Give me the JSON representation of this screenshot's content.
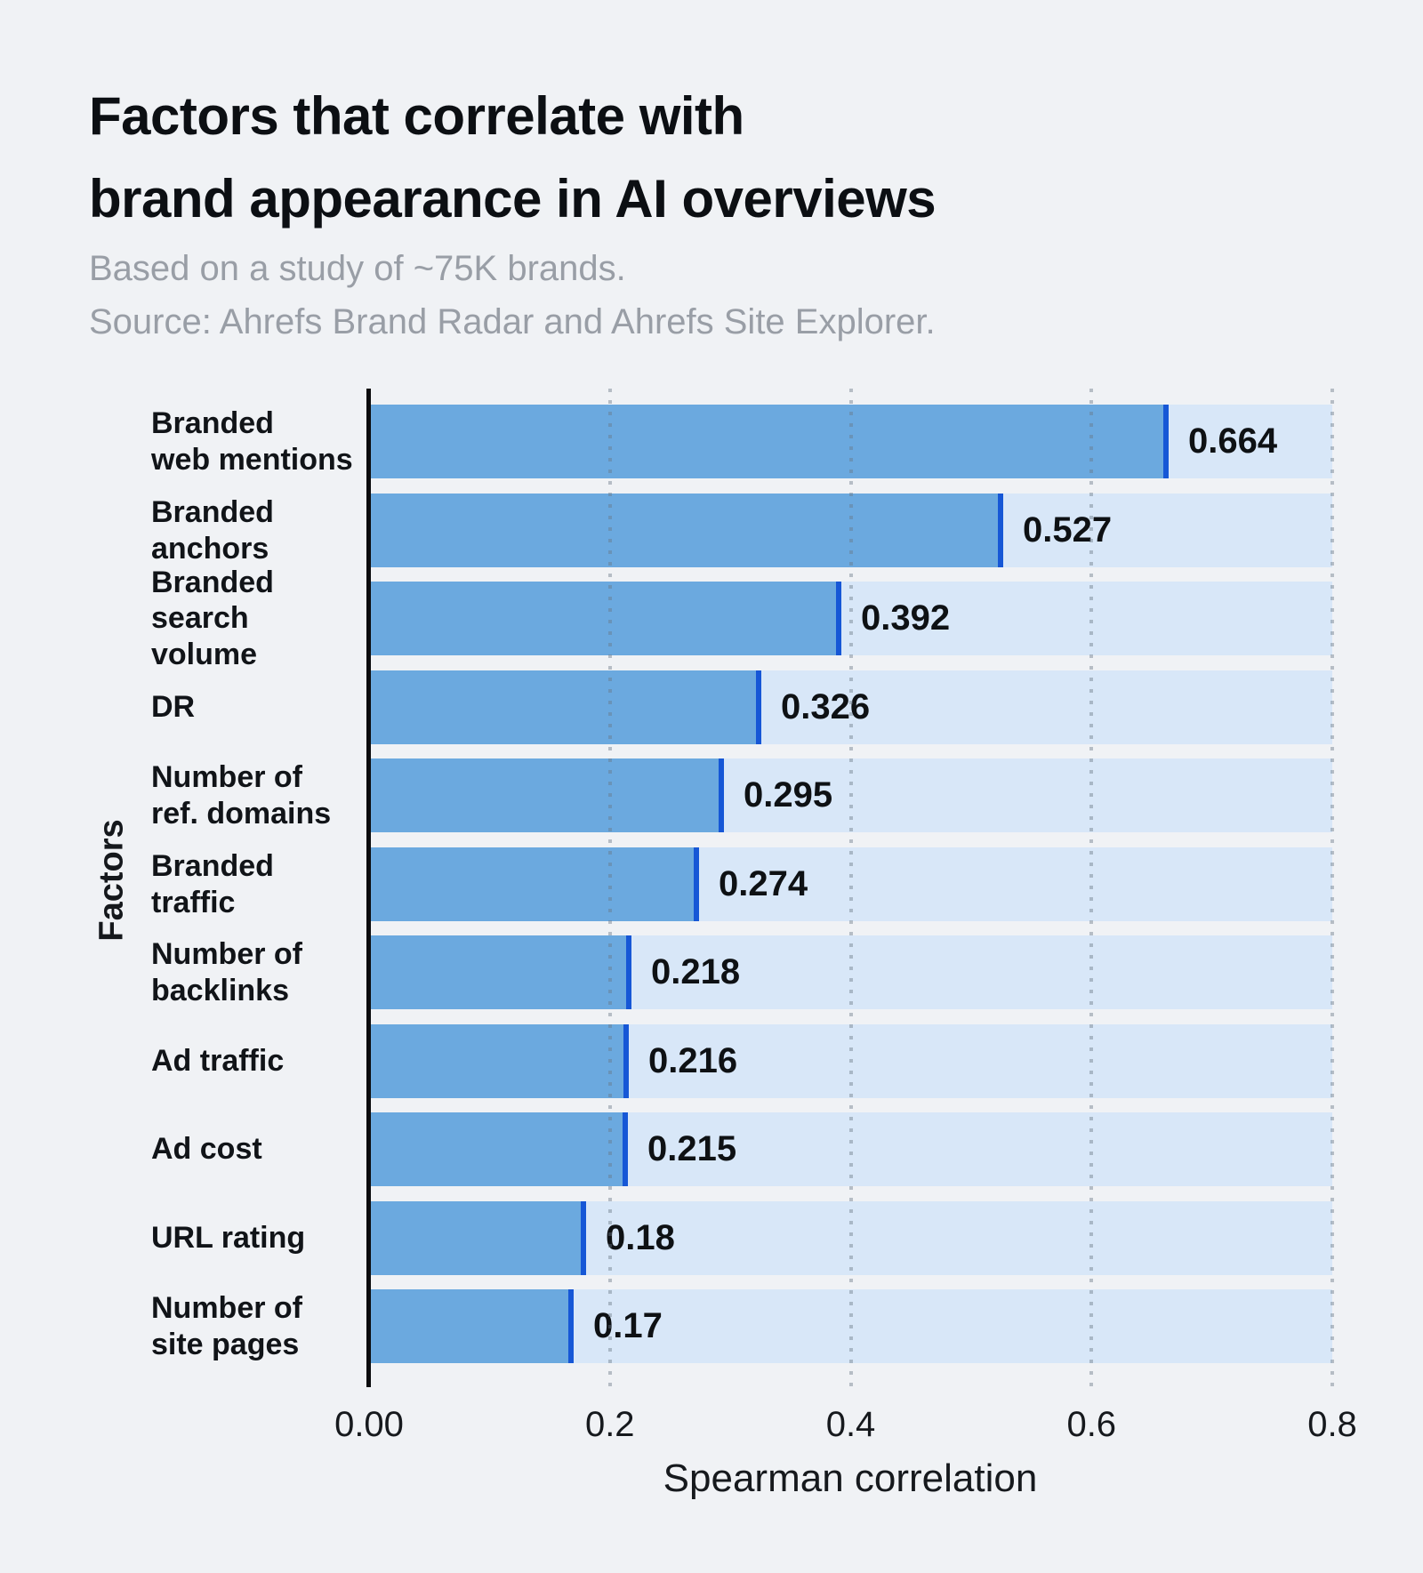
{
  "header": {
    "title": "Factors that correlate with\nbrand appearance in AI overviews",
    "subtitle": "Based on a study of ~75K brands.\nSource: Ahrefs Brand Radar and Ahrefs Site Explorer."
  },
  "chart_data": {
    "type": "bar",
    "orientation": "horizontal",
    "title": "Factors that correlate with brand appearance in AI overviews",
    "subtitle": "Based on a study of ~75K brands. Source: Ahrefs Brand Radar and Ahrefs Site Explorer.",
    "categories": [
      "Branded\nweb mentions",
      "Branded\nanchors",
      "Branded\nsearch volume",
      "DR",
      "Number of\nref. domains",
      "Branded\ntraffic",
      "Number of\nbacklinks",
      "Ad traffic",
      "Ad cost",
      "URL rating",
      "Number of\nsite pages"
    ],
    "values": [
      0.664,
      0.527,
      0.392,
      0.326,
      0.295,
      0.274,
      0.218,
      0.216,
      0.215,
      0.18,
      0.17
    ],
    "value_labels": [
      "0.664",
      "0.527",
      "0.392",
      "0.326",
      "0.295",
      "0.274",
      "0.218",
      "0.216",
      "0.215",
      "0.18",
      "0.17"
    ],
    "xlabel": "Spearman correlation",
    "ylabel": "Factors",
    "xlim": [
      0,
      0.8
    ],
    "xticks": {
      "labels": [
        "0.00",
        "0.2",
        "0.4",
        "0.6",
        "0.8"
      ],
      "values": [
        0,
        0.2,
        0.4,
        0.6,
        0.8
      ]
    },
    "grid": "vertical-dotted",
    "legend": "none",
    "colors": {
      "background": "#F0F2F5",
      "bar": "#6BA9DF",
      "bar_cap": "#1657D6",
      "track": "#D8E7F8",
      "axis_line": "#0B0C0E",
      "grid_dot": "#677482",
      "text": "#0C0F13",
      "subtitle_text": "#999EA6"
    }
  }
}
